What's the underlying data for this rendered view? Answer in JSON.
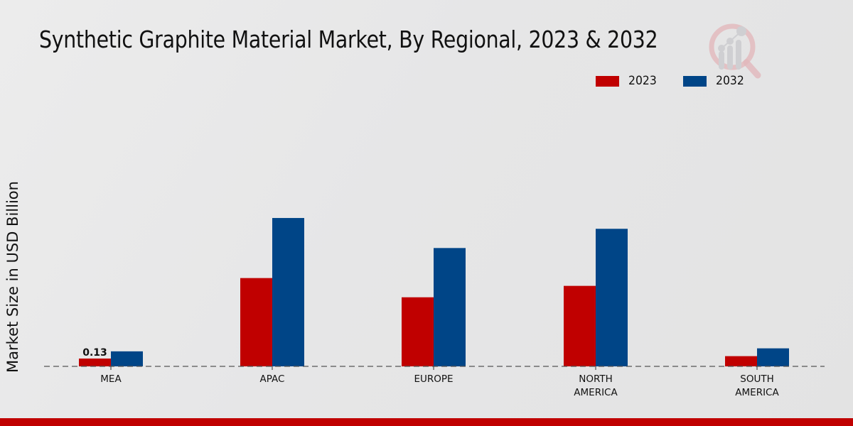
{
  "chart_data": {
    "type": "bar",
    "title": "Synthetic Graphite Material Market, By Regional, 2023 & 2032",
    "xlabel": "",
    "ylabel": "Market Size in USD Billion",
    "categories": [
      "MEA",
      "APAC",
      "EUROPE",
      "NORTH AMERICA",
      "SOUTH AMERICA"
    ],
    "category_lines": [
      [
        "MEA"
      ],
      [
        "APAC"
      ],
      [
        "EUROPE"
      ],
      [
        "NORTH",
        "AMERICA"
      ],
      [
        "SOUTH",
        "AMERICA"
      ]
    ],
    "series": [
      {
        "name": "2023",
        "color": "#c00000",
        "values": [
          0.13,
          1.47,
          1.15,
          1.34,
          0.17
        ]
      },
      {
        "name": "2032",
        "color": "#004587",
        "values": [
          0.25,
          2.47,
          1.97,
          2.29,
          0.3
        ]
      }
    ],
    "data_labels": [
      {
        "series": "2023",
        "category": "MEA",
        "text": "0.13"
      }
    ],
    "ylim": [
      0,
      2.6
    ],
    "grid": false,
    "baseline": "dashed",
    "legend_position": "top-right"
  },
  "brand": {
    "accent_color": "#c00000",
    "logo_icon": "magnifier-chart-logo-icon"
  }
}
